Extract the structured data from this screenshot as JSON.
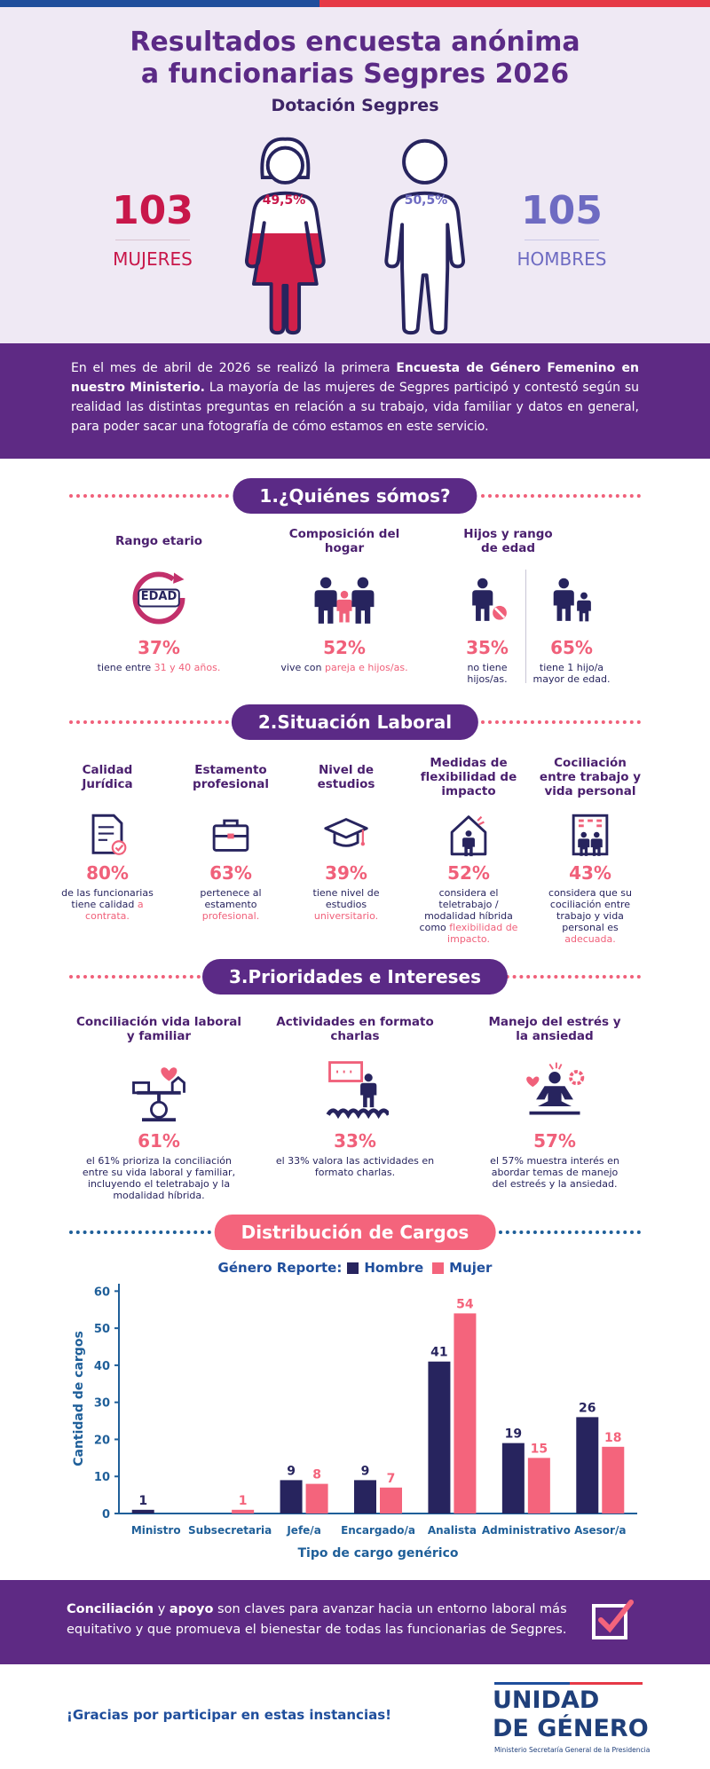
{
  "header": {
    "title_line1": "Resultados encuesta anónima",
    "title_line2": "a funcionarias Segpres 2026",
    "subtitle": "Dotación Segpres",
    "women": {
      "count": "103",
      "label": "MUJERES",
      "percent": "49,5%"
    },
    "men": {
      "count": "105",
      "label": "HOMBRES",
      "percent": "50,5%"
    }
  },
  "intro": {
    "parts": [
      "En el mes de abril de 2026 se realizó la primera",
      "Encuesta de Género Femenino en nuestro Ministerio.",
      "La mayoría de las mujeres de Segpres participó y contestó según su realidad las distintas preguntas en relación a su trabajo, vida familiar y datos en general, para poder sacar una fotografía de cómo estamos en este servicio."
    ]
  },
  "section1": {
    "title": "1.¿Quiénes sómos?",
    "items": [
      {
        "title": "Rango etario",
        "icon": "EDAD",
        "percent": "37%",
        "desc": "tiene entre",
        "highlight": "31 y 40 años."
      },
      {
        "title": "Composición del hogar",
        "percent": "52%",
        "desc": "vive con",
        "highlight": "pareja e hijos/as."
      },
      {
        "title": "Hijos y rango de edad",
        "subitems": [
          {
            "percent": "35%",
            "desc": "no tiene hijos/as."
          },
          {
            "percent": "65%",
            "desc": "tiene 1 hijo/a mayor de edad."
          }
        ]
      }
    ]
  },
  "section2": {
    "title": "2.Situación Laboral",
    "items": [
      {
        "title": "Calidad Jurídica",
        "percent": "80%",
        "desc": "de las funcionarias tiene calidad",
        "highlight": "a contrata."
      },
      {
        "title": "Estamento profesional",
        "percent": "63%",
        "desc": "pertenece al estamento",
        "highlight": "profesional."
      },
      {
        "title": "Nivel de estudios",
        "percent": "39%",
        "desc": "tiene nivel de estudios",
        "highlight": "universitario."
      },
      {
        "title": "Medidas de flexibilidad de impacto",
        "percent": "52%",
        "desc": "considera el teletrabajo / modalidad híbrida como",
        "highlight": "flexibilidad de impacto."
      },
      {
        "title": "Cociliación entre trabajo y vida personal",
        "percent": "43%",
        "desc": "considera que su cociliación entre trabajo y vida personal es",
        "highlight": "adecuada."
      }
    ]
  },
  "section3": {
    "title": "3.Prioridades e Intereses",
    "items": [
      {
        "title": "Conciliación vida laboral y familiar",
        "percent": "61%",
        "desc": "el 61% prioriza la conciliación entre su vida laboral y familiar, incluyendo el teletrabajo y la modalidad híbrida."
      },
      {
        "title": "Actividades en formato charlas",
        "percent": "33%",
        "desc": "el 33% valora las actividades en formato charlas."
      },
      {
        "title": "Manejo del estrés y la ansiedad",
        "percent": "57%",
        "desc": "el 57% muestra interés en abordar temas de manejo del estreés y la ansiedad."
      }
    ]
  },
  "chart_data": {
    "type": "bar",
    "title": "Distribución de Cargos",
    "legend_title": "Género Reporte:",
    "x_label": "Tipo de cargo genérico",
    "y_label": "Cantidad de cargos",
    "categories": [
      "Ministro",
      "Subsecretaria",
      "Jefe/a",
      "Encargado/a",
      "Analista",
      "Administrativo",
      "Asesor/a"
    ],
    "series": [
      {
        "name": "Hombre",
        "color": "#27245e",
        "values": [
          1,
          null,
          9,
          9,
          41,
          19,
          26
        ]
      },
      {
        "name": "Mujer",
        "color": "#f4647c",
        "values": [
          null,
          1,
          8,
          7,
          54,
          15,
          18
        ]
      }
    ],
    "ylim": [
      0,
      62
    ],
    "yticks": [
      0,
      10,
      20,
      30,
      40,
      50,
      60
    ],
    "grid": false
  },
  "footer": {
    "parts": [
      "Conciliación",
      "y",
      "apoyo",
      "son claves para avanzar hacia un entorno laboral más equitativo y que promueva el bienestar de todas las funcionarias de Segpres."
    ],
    "thanks": "¡Gracias por participar en estas instancias!",
    "logo_line1": "UNIDAD",
    "logo_line2": "DE GÉNERO",
    "logo_sub": "Ministerio Secretaría General de la Presidencia"
  }
}
